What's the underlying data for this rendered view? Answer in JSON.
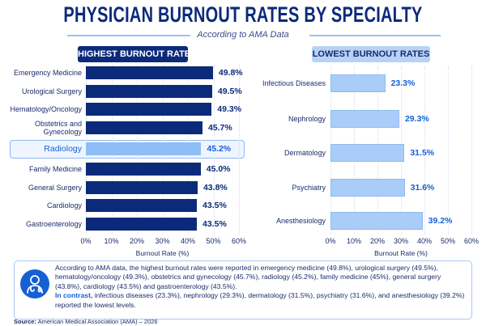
{
  "title": "PHYSICIAN BURNOUT RATES BY SPECIALTY",
  "subtitle": "According to AMA Data",
  "colors": {
    "dark": "#0b2a7a",
    "light": "#a9cdf8",
    "accent": "#1560d4"
  },
  "chart_data": [
    {
      "type": "bar",
      "orientation": "horizontal",
      "title": "HIGHEST BURNOUT RATES",
      "xlabel": "Burnout Rate (%)",
      "xlim": [
        0,
        60
      ],
      "ticks": [
        "0%",
        "10%",
        "20%",
        "30%",
        "40%",
        "50%",
        "60%"
      ],
      "highlight": "Radiology",
      "categories": [
        "Emergency Medicine",
        "Urological Surgery",
        "Hematology/Oncology",
        "Obstetrics and Gynecology",
        "Radiology",
        "Family Medicine",
        "General Surgery",
        "Cardiology",
        "Gastroenterology"
      ],
      "values": [
        49.8,
        49.5,
        49.3,
        45.7,
        45.2,
        45.0,
        43.8,
        43.5,
        43.5
      ],
      "labels": [
        "49.8%",
        "49.5%",
        "49.3%",
        "45.7%",
        "45.2%",
        "45.0%",
        "43.8%",
        "43.5%",
        "43.5%"
      ]
    },
    {
      "type": "bar",
      "orientation": "horizontal",
      "title": "LOWEST BURNOUT RATES",
      "xlabel": "Burnout Rate (%)",
      "xlim": [
        0,
        60
      ],
      "ticks": [
        "0%",
        "10%",
        "20%",
        "30%",
        "40%",
        "50%",
        "60%"
      ],
      "categories": [
        "Infectious Diseases",
        "Nephrology",
        "Dermatology",
        "Psychiatry",
        "Anesthesiology"
      ],
      "values": [
        23.3,
        29.3,
        31.5,
        31.6,
        39.2
      ],
      "labels": [
        "23.3%",
        "29.3%",
        "31.5%",
        "31.6%",
        "39.2%"
      ]
    }
  ],
  "summary": {
    "icon": "doctor-stethoscope-icon",
    "text1": "According to AMA data, the highest burnout rates were reported in emergency medicine (49.8%), urological surgery (49.5%), hematology/oncology (49.3%), obstetrics and gynecology (45.7%), radiology (45.2%), family medicine (45%), general surgery (43.8%), cardiology (43.5%) and gastroenterology (43.5%).",
    "contrast": "In contrast,",
    "text2": " infectious diseases (23.3%), nephrology (29.3%), dermatology (31.5%), psychiatry (31.6%), and anesthesiology (39.2%) reported the lowest levels."
  },
  "source": {
    "label": "Source:",
    "text": " American Medical Association (AMA) – 2026"
  }
}
